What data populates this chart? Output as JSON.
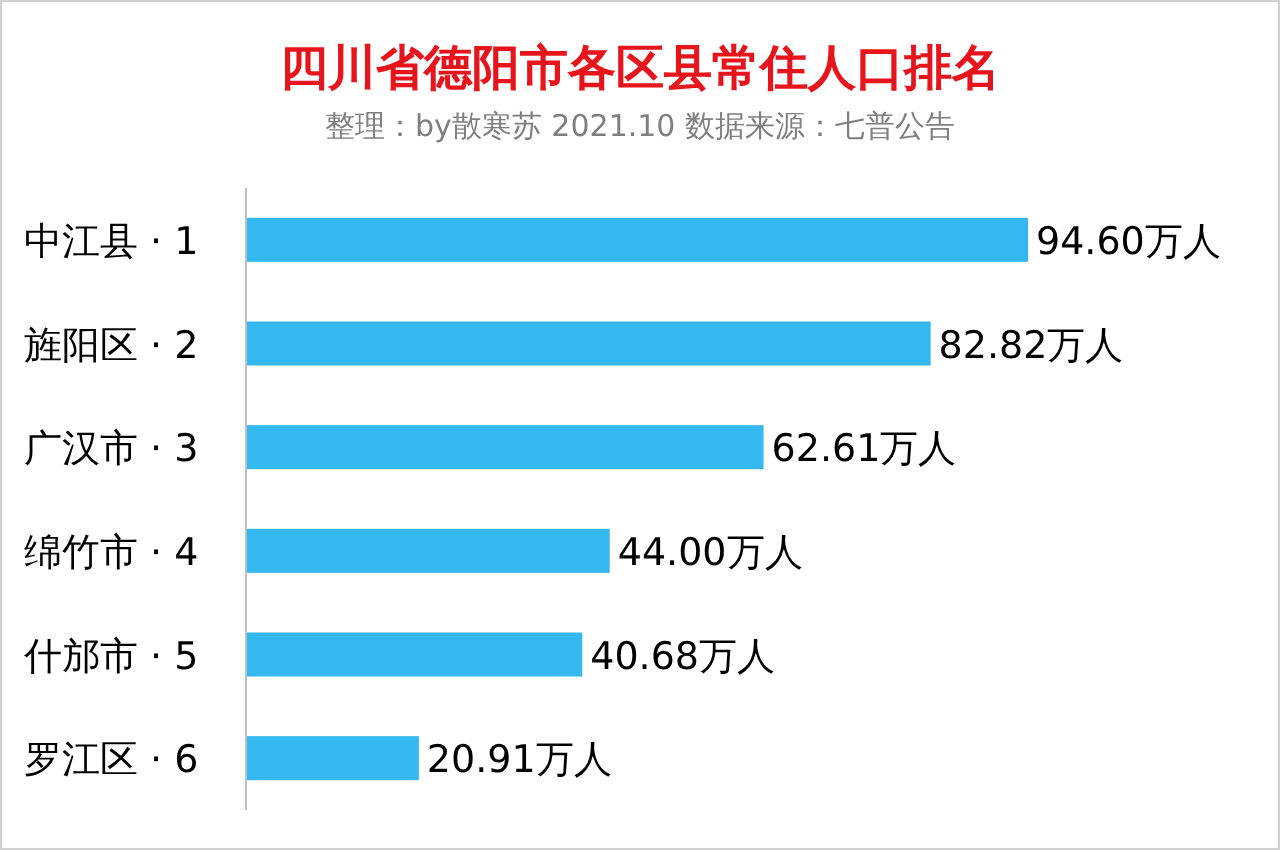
{
  "chart_data": {
    "type": "bar",
    "orientation": "horizontal",
    "title": "四川省德阳市各区县常住人口排名",
    "subtitle": "整理：by散寒苏  2021.10  数据来源：七普公告",
    "categories": [
      "中江县 · 1",
      "旌阳区 · 2",
      "广汉市 · 3",
      "绵竹市 · 4",
      "什邡市 · 5",
      "罗江区 · 6"
    ],
    "values": [
      94.6,
      82.82,
      62.61,
      44.0,
      40.68,
      20.91
    ],
    "value_labels": [
      "94.60万人",
      "82.82万人",
      "62.61万人",
      "44.00万人",
      "40.68万人",
      "20.91万人"
    ],
    "color": "#33b8f0"
  }
}
